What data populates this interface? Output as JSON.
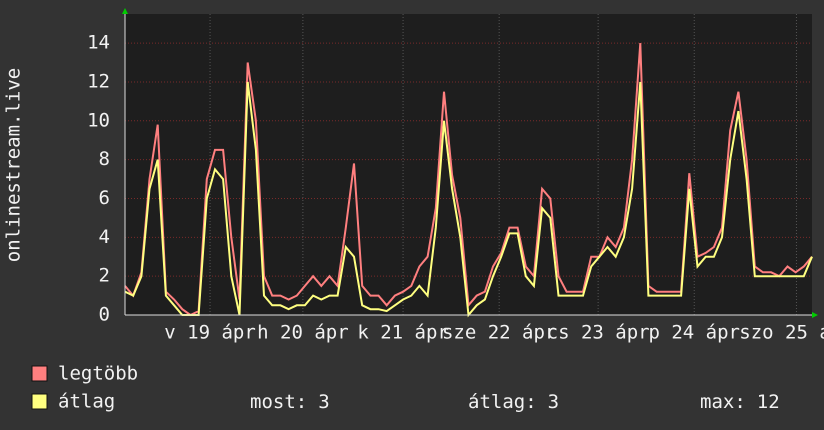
{
  "chart_data": {
    "type": "line",
    "y_label": "onlinestream.live",
    "xlim": [
      0,
      168
    ],
    "xticks": [
      {
        "value": 20.8,
        "label": "v 19 ápr"
      },
      {
        "value": 43.5,
        "label": "h 20 ápr"
      },
      {
        "value": 68,
        "label": "k 21 ápr"
      },
      {
        "value": 91.5,
        "label": "sze 22 ápr"
      },
      {
        "value": 115.7,
        "label": "cs 23 ápr"
      },
      {
        "value": 139.2,
        "label": "p 24 ápr"
      },
      {
        "value": 164.2,
        "label": "szo 25 ápr"
      }
    ],
    "ylim": [
      0,
      15.5
    ],
    "yticks": [
      0,
      2,
      4,
      6,
      8,
      10,
      12,
      14
    ],
    "grid": true,
    "x": [
      0,
      2,
      4,
      6,
      8,
      10,
      12,
      14,
      16,
      18,
      20,
      22,
      24,
      26,
      28,
      30,
      32,
      34,
      36,
      38,
      40,
      42,
      44,
      46,
      48,
      50,
      52,
      54,
      56,
      58,
      60,
      62,
      64,
      66,
      68,
      70,
      72,
      74,
      76,
      78,
      80,
      82,
      84,
      86,
      88,
      90,
      92,
      94,
      96,
      98,
      100,
      102,
      104,
      106,
      108,
      110,
      112,
      114,
      116,
      118,
      120,
      122,
      124,
      126,
      128,
      130,
      132,
      134,
      136,
      138,
      140,
      142,
      144,
      146,
      148,
      150,
      152,
      154,
      156,
      158,
      160,
      162,
      164,
      166,
      168
    ],
    "series": [
      {
        "name": "legtöbb",
        "color": "#ff7f7f",
        "values": [
          1.5,
          1,
          2.2,
          7,
          9.8,
          1.2,
          0.8,
          0.3,
          0,
          0.2,
          7,
          8.5,
          8.5,
          4,
          0.8,
          13,
          10,
          2,
          1,
          1,
          0.8,
          1,
          1.5,
          2,
          1.5,
          2,
          1.5,
          4.5,
          7.8,
          1.5,
          1,
          1,
          0.5,
          1,
          1.2,
          1.5,
          2.5,
          3,
          5.5,
          11.5,
          7.2,
          5,
          0.5,
          1,
          1.2,
          2.5,
          3.2,
          4.5,
          4.5,
          2.5,
          2,
          6.5,
          6,
          2,
          1.2,
          1.2,
          1.2,
          3,
          3,
          4,
          3.5,
          4.5,
          8,
          14,
          1.5,
          1.2,
          1.2,
          1.2,
          1.2,
          7.3,
          3,
          3.2,
          3.5,
          4.5,
          9.5,
          11.5,
          8,
          2.5,
          2.2,
          2.2,
          2,
          2.5,
          2.2,
          2.5,
          3
        ]
      },
      {
        "name": "átlag",
        "color": "#ffff80",
        "values": [
          1.2,
          1,
          2,
          6.5,
          8,
          1,
          0.5,
          0,
          0,
          0,
          6,
          7.5,
          7,
          2,
          0,
          12,
          8.5,
          1,
          0.5,
          0.5,
          0.3,
          0.5,
          0.5,
          1,
          0.8,
          1,
          1,
          3.5,
          3,
          0.5,
          0.3,
          0.3,
          0.2,
          0.5,
          0.8,
          1,
          1.5,
          1,
          4.5,
          10,
          6.5,
          4,
          0,
          0.5,
          0.8,
          2,
          3,
          4.2,
          4.2,
          2,
          1.5,
          5.5,
          5,
          1,
          1,
          1,
          1,
          2.5,
          3,
          3.5,
          3,
          4,
          6.5,
          12,
          1,
          1,
          1,
          1,
          1,
          6.5,
          2.5,
          3,
          3,
          4,
          8,
          10.5,
          7,
          2,
          2,
          2,
          2,
          2,
          2,
          2,
          3
        ]
      }
    ],
    "stats": [
      {
        "label": "most:",
        "value": 3
      },
      {
        "label": "átlag:",
        "value": 3
      },
      {
        "label": "max:",
        "value": 12
      }
    ]
  }
}
